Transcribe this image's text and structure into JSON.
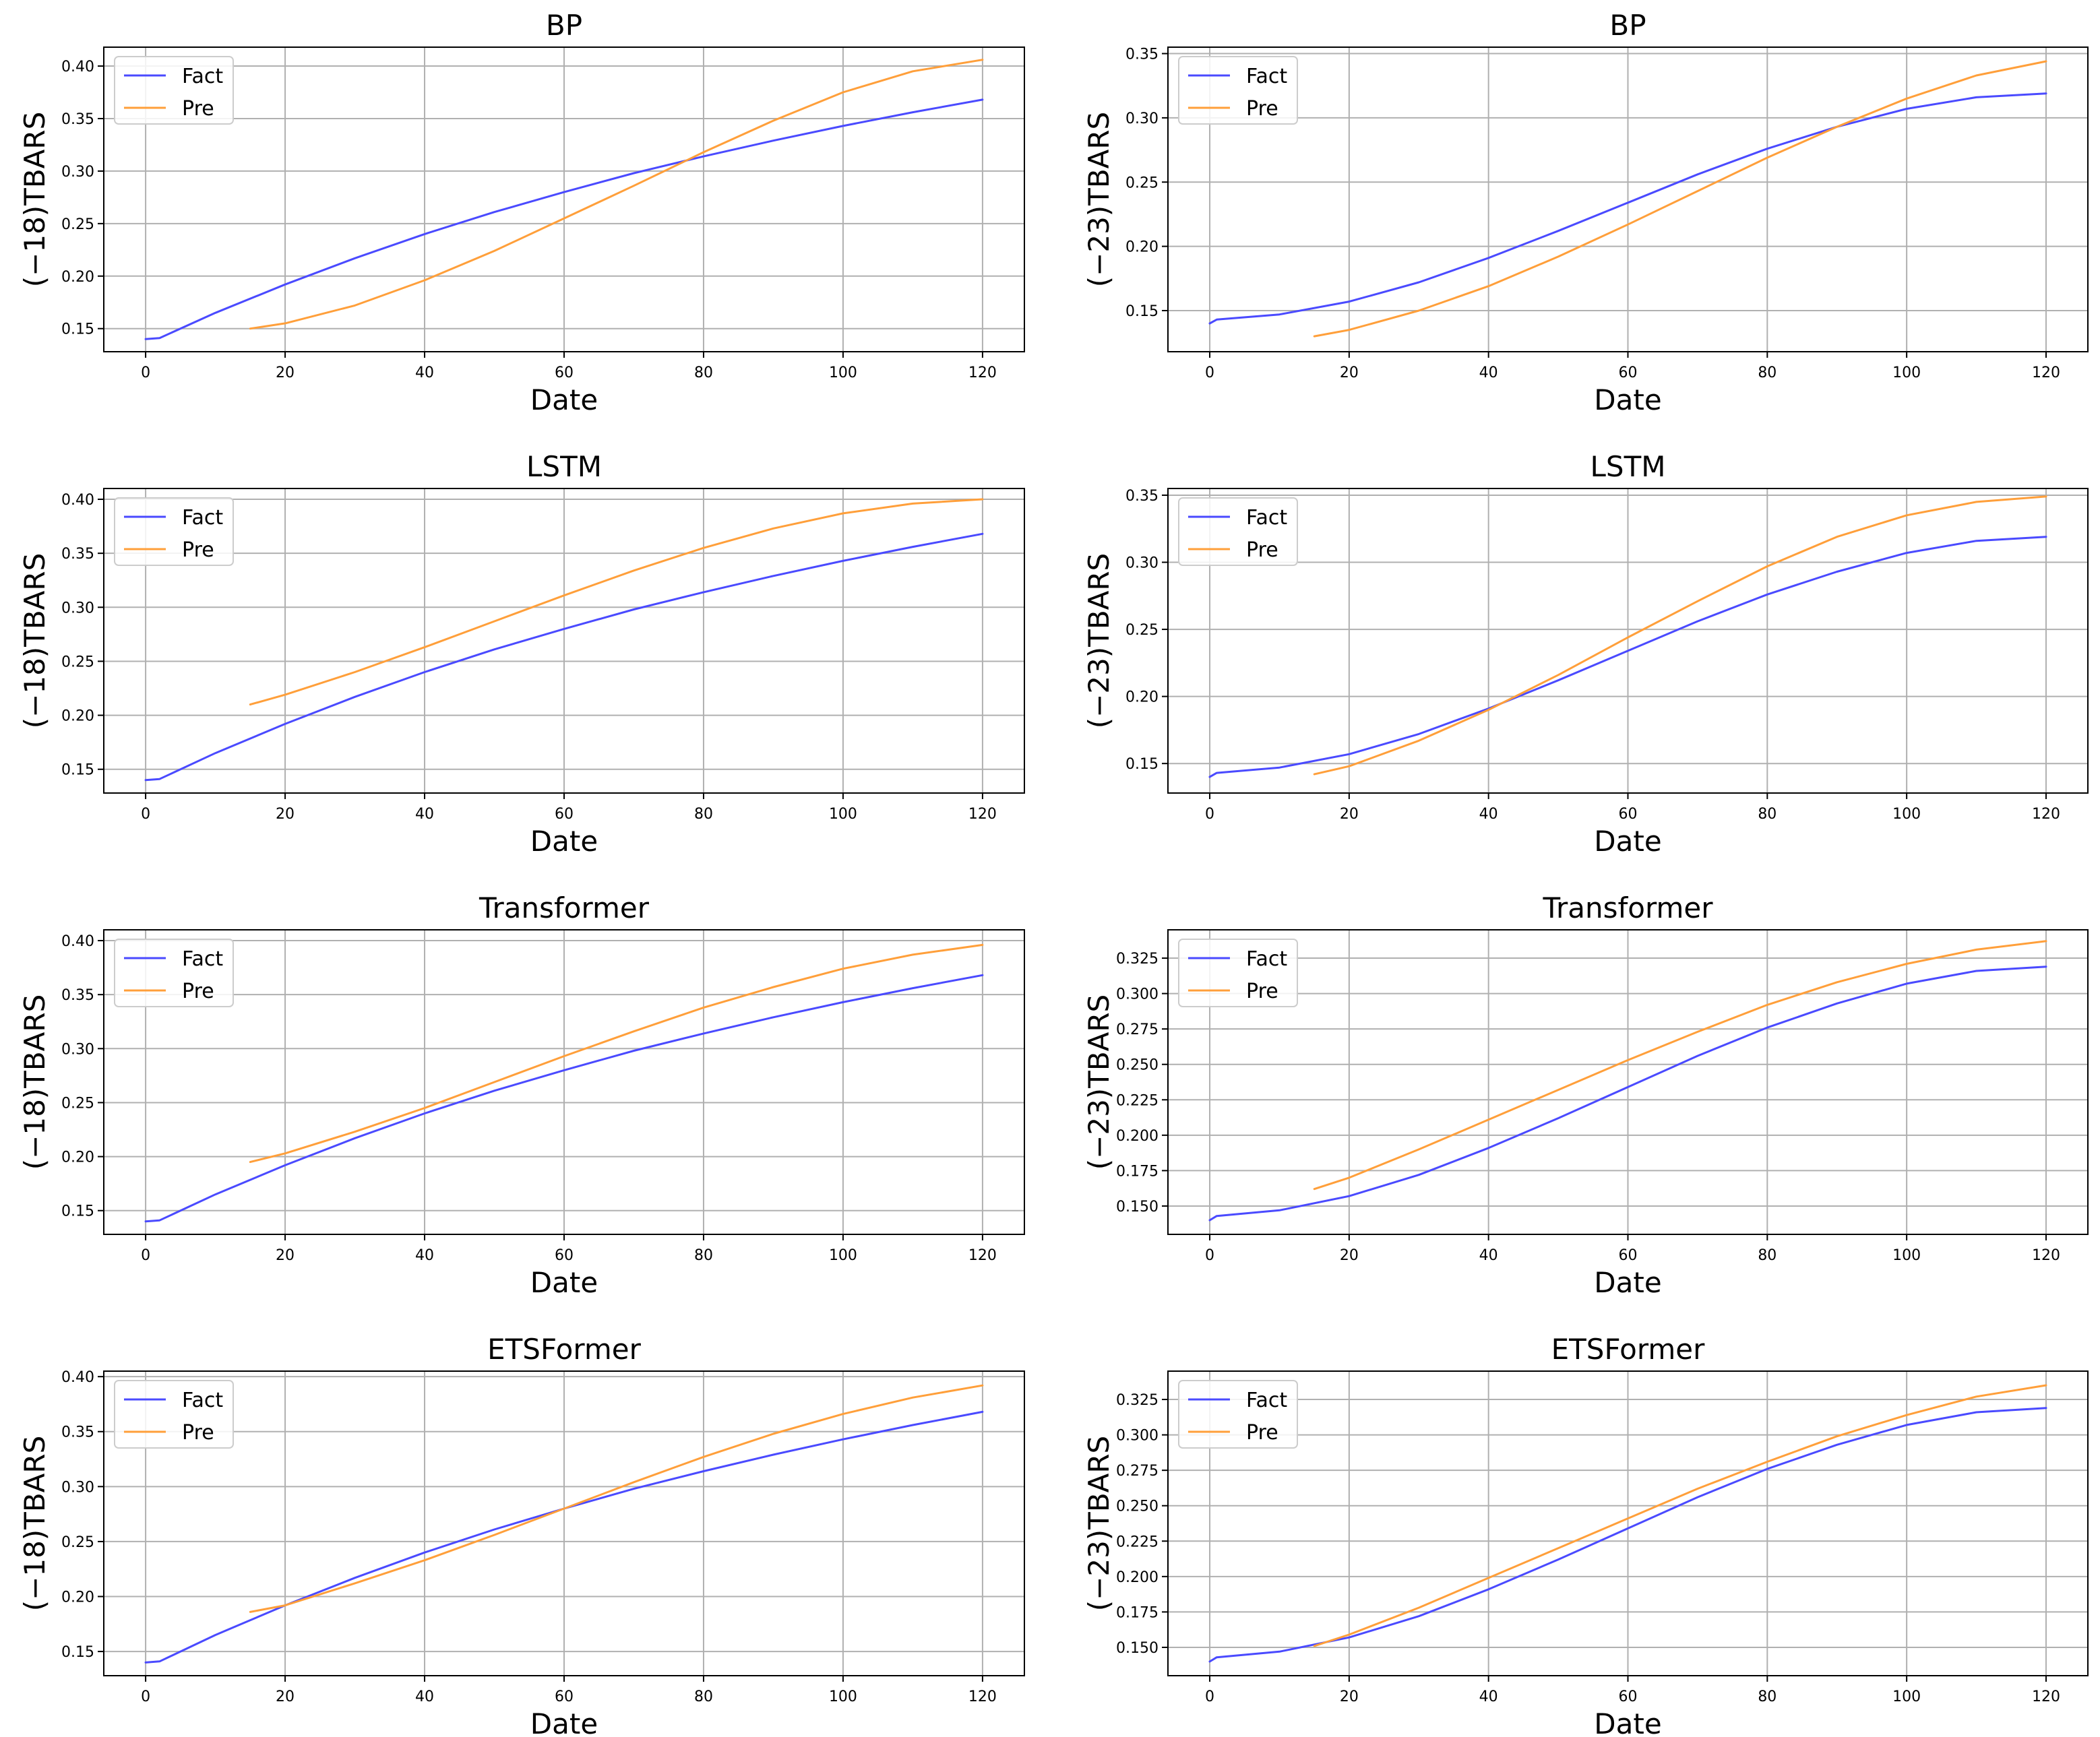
{
  "chart_data": [
    {
      "type": "line",
      "title": "BP",
      "xlabel": "Date",
      "ylabel": "(−18)TBARS",
      "xlim": [
        -6,
        126
      ],
      "ylim": [
        0.128,
        0.418
      ],
      "xticks": [
        "0",
        "20",
        "40",
        "60",
        "80",
        "100",
        "120"
      ],
      "yticks": [
        "0.15",
        "0.20",
        "0.25",
        "0.30",
        "0.35",
        "0.40"
      ],
      "legend": "top-left",
      "series": [
        {
          "name": "Fact",
          "color": "#4a4aff",
          "x": [
            0,
            2,
            10,
            20,
            30,
            40,
            50,
            60,
            70,
            80,
            90,
            100,
            110,
            120
          ],
          "y": [
            0.14,
            0.141,
            0.165,
            0.192,
            0.217,
            0.24,
            0.261,
            0.28,
            0.298,
            0.314,
            0.329,
            0.343,
            0.356,
            0.368
          ]
        },
        {
          "name": "Pre",
          "color": "#ff9f3a",
          "x": [
            15,
            20,
            30,
            40,
            50,
            60,
            70,
            80,
            90,
            100,
            110,
            120
          ],
          "y": [
            0.15,
            0.155,
            0.172,
            0.196,
            0.224,
            0.255,
            0.286,
            0.318,
            0.348,
            0.375,
            0.395,
            0.406
          ]
        }
      ]
    },
    {
      "type": "line",
      "title": "BP",
      "xlabel": "Date",
      "ylabel": "(−23)TBARS",
      "xlim": [
        -6,
        126
      ],
      "ylim": [
        0.118,
        0.355
      ],
      "xticks": [
        "0",
        "20",
        "40",
        "60",
        "80",
        "100",
        "120"
      ],
      "yticks": [
        "0.15",
        "0.20",
        "0.25",
        "0.30",
        "0.35"
      ],
      "legend": "top-left",
      "series": [
        {
          "name": "Fact",
          "color": "#4a4aff",
          "x": [
            0,
            1,
            10,
            20,
            30,
            40,
            50,
            60,
            70,
            80,
            90,
            100,
            110,
            120
          ],
          "y": [
            0.14,
            0.143,
            0.147,
            0.157,
            0.172,
            0.191,
            0.212,
            0.234,
            0.256,
            0.276,
            0.293,
            0.307,
            0.316,
            0.319
          ]
        },
        {
          "name": "Pre",
          "color": "#ff9f3a",
          "x": [
            15,
            20,
            30,
            40,
            50,
            60,
            70,
            80,
            90,
            100,
            110,
            120
          ],
          "y": [
            0.13,
            0.135,
            0.15,
            0.169,
            0.192,
            0.217,
            0.243,
            0.269,
            0.293,
            0.315,
            0.333,
            0.344
          ]
        }
      ]
    },
    {
      "type": "line",
      "title": "LSTM",
      "xlabel": "Date",
      "ylabel": "(−18)TBARS",
      "xlim": [
        -6,
        126
      ],
      "ylim": [
        0.128,
        0.41
      ],
      "xticks": [
        "0",
        "20",
        "40",
        "60",
        "80",
        "100",
        "120"
      ],
      "yticks": [
        "0.15",
        "0.20",
        "0.25",
        "0.30",
        "0.35",
        "0.40"
      ],
      "legend": "top-left",
      "series": [
        {
          "name": "Fact",
          "color": "#4a4aff",
          "x": [
            0,
            2,
            10,
            20,
            30,
            40,
            50,
            60,
            70,
            80,
            90,
            100,
            110,
            120
          ],
          "y": [
            0.14,
            0.141,
            0.165,
            0.192,
            0.217,
            0.24,
            0.261,
            0.28,
            0.298,
            0.314,
            0.329,
            0.343,
            0.356,
            0.368
          ]
        },
        {
          "name": "Pre",
          "color": "#ff9f3a",
          "x": [
            15,
            20,
            30,
            40,
            50,
            60,
            70,
            80,
            90,
            100,
            110,
            120
          ],
          "y": [
            0.21,
            0.219,
            0.24,
            0.263,
            0.287,
            0.311,
            0.334,
            0.355,
            0.373,
            0.387,
            0.396,
            0.4
          ]
        }
      ]
    },
    {
      "type": "line",
      "title": "LSTM",
      "xlabel": "Date",
      "ylabel": "(−23)TBARS",
      "xlim": [
        -6,
        126
      ],
      "ylim": [
        0.128,
        0.355
      ],
      "xticks": [
        "0",
        "20",
        "40",
        "60",
        "80",
        "100",
        "120"
      ],
      "yticks": [
        "0.15",
        "0.20",
        "0.25",
        "0.30",
        "0.35"
      ],
      "legend": "top-left",
      "series": [
        {
          "name": "Fact",
          "color": "#4a4aff",
          "x": [
            0,
            1,
            10,
            20,
            30,
            40,
            50,
            60,
            70,
            80,
            90,
            100,
            110,
            120
          ],
          "y": [
            0.14,
            0.143,
            0.147,
            0.157,
            0.172,
            0.191,
            0.212,
            0.234,
            0.256,
            0.276,
            0.293,
            0.307,
            0.316,
            0.319
          ]
        },
        {
          "name": "Pre",
          "color": "#ff9f3a",
          "x": [
            15,
            20,
            30,
            40,
            50,
            60,
            70,
            80,
            90,
            100,
            110,
            120
          ],
          "y": [
            0.142,
            0.148,
            0.167,
            0.19,
            0.216,
            0.244,
            0.271,
            0.297,
            0.319,
            0.335,
            0.345,
            0.349
          ]
        }
      ]
    },
    {
      "type": "line",
      "title": "Transformer",
      "xlabel": "Date",
      "ylabel": "(−18)TBARS",
      "xlim": [
        -6,
        126
      ],
      "ylim": [
        0.128,
        0.41
      ],
      "xticks": [
        "0",
        "20",
        "40",
        "60",
        "80",
        "100",
        "120"
      ],
      "yticks": [
        "0.15",
        "0.20",
        "0.25",
        "0.30",
        "0.35",
        "0.40"
      ],
      "legend": "top-left",
      "series": [
        {
          "name": "Fact",
          "color": "#4a4aff",
          "x": [
            0,
            2,
            10,
            20,
            30,
            40,
            50,
            60,
            70,
            80,
            90,
            100,
            110,
            120
          ],
          "y": [
            0.14,
            0.141,
            0.165,
            0.192,
            0.217,
            0.24,
            0.261,
            0.28,
            0.298,
            0.314,
            0.329,
            0.343,
            0.356,
            0.368
          ]
        },
        {
          "name": "Pre",
          "color": "#ff9f3a",
          "x": [
            15,
            20,
            30,
            40,
            50,
            60,
            70,
            80,
            90,
            100,
            110,
            120
          ],
          "y": [
            0.195,
            0.203,
            0.223,
            0.245,
            0.269,
            0.293,
            0.316,
            0.338,
            0.357,
            0.374,
            0.387,
            0.396
          ]
        }
      ]
    },
    {
      "type": "line",
      "title": "Transformer",
      "xlabel": "Date",
      "ylabel": "(−23)TBARS",
      "xlim": [
        -6,
        126
      ],
      "ylim": [
        0.13,
        0.345
      ],
      "xticks": [
        "0",
        "20",
        "40",
        "60",
        "80",
        "100",
        "120"
      ],
      "yticks": [
        "0.150",
        "0.175",
        "0.200",
        "0.225",
        "0.250",
        "0.275",
        "0.300",
        "0.325"
      ],
      "legend": "top-left",
      "series": [
        {
          "name": "Fact",
          "color": "#4a4aff",
          "x": [
            0,
            1,
            10,
            20,
            30,
            40,
            50,
            60,
            70,
            80,
            90,
            100,
            110,
            120
          ],
          "y": [
            0.14,
            0.143,
            0.147,
            0.157,
            0.172,
            0.191,
            0.212,
            0.234,
            0.256,
            0.276,
            0.293,
            0.307,
            0.316,
            0.319
          ]
        },
        {
          "name": "Pre",
          "color": "#ff9f3a",
          "x": [
            15,
            20,
            30,
            40,
            50,
            60,
            70,
            80,
            90,
            100,
            110,
            120
          ],
          "y": [
            0.162,
            0.17,
            0.19,
            0.211,
            0.232,
            0.253,
            0.273,
            0.292,
            0.308,
            0.321,
            0.331,
            0.337
          ]
        }
      ]
    },
    {
      "type": "line",
      "title": "ETSFormer",
      "xlabel": "Date",
      "ylabel": "(−18)TBARS",
      "xlim": [
        -6,
        126
      ],
      "ylim": [
        0.128,
        0.405
      ],
      "xticks": [
        "0",
        "20",
        "40",
        "60",
        "80",
        "100",
        "120"
      ],
      "yticks": [
        "0.15",
        "0.20",
        "0.25",
        "0.30",
        "0.35",
        "0.40"
      ],
      "legend": "top-left",
      "series": [
        {
          "name": "Fact",
          "color": "#4a4aff",
          "x": [
            0,
            2,
            10,
            20,
            30,
            40,
            50,
            60,
            70,
            80,
            90,
            100,
            110,
            120
          ],
          "y": [
            0.14,
            0.141,
            0.165,
            0.192,
            0.217,
            0.24,
            0.261,
            0.28,
            0.298,
            0.314,
            0.329,
            0.343,
            0.356,
            0.368
          ]
        },
        {
          "name": "Pre",
          "color": "#ff9f3a",
          "x": [
            15,
            20,
            30,
            40,
            50,
            60,
            70,
            80,
            90,
            100,
            110,
            120
          ],
          "y": [
            0.186,
            0.192,
            0.212,
            0.233,
            0.256,
            0.28,
            0.304,
            0.327,
            0.348,
            0.366,
            0.381,
            0.392
          ]
        }
      ]
    },
    {
      "type": "line",
      "title": "ETSFormer",
      "xlabel": "Date",
      "ylabel": "(−23)TBARS",
      "xlim": [
        -6,
        126
      ],
      "ylim": [
        0.13,
        0.345
      ],
      "xticks": [
        "0",
        "20",
        "40",
        "60",
        "80",
        "100",
        "120"
      ],
      "yticks": [
        "0.150",
        "0.175",
        "0.200",
        "0.225",
        "0.250",
        "0.275",
        "0.300",
        "0.325"
      ],
      "legend": "top-left",
      "series": [
        {
          "name": "Fact",
          "color": "#4a4aff",
          "x": [
            0,
            1,
            10,
            20,
            30,
            40,
            50,
            60,
            70,
            80,
            90,
            100,
            110,
            120
          ],
          "y": [
            0.14,
            0.143,
            0.147,
            0.157,
            0.172,
            0.191,
            0.212,
            0.234,
            0.256,
            0.276,
            0.293,
            0.307,
            0.316,
            0.319
          ]
        },
        {
          "name": "Pre",
          "color": "#ff9f3a",
          "x": [
            15,
            20,
            30,
            40,
            50,
            60,
            70,
            80,
            90,
            100,
            110,
            120
          ],
          "y": [
            0.151,
            0.159,
            0.178,
            0.199,
            0.22,
            0.241,
            0.262,
            0.281,
            0.299,
            0.314,
            0.327,
            0.335
          ]
        }
      ]
    }
  ]
}
